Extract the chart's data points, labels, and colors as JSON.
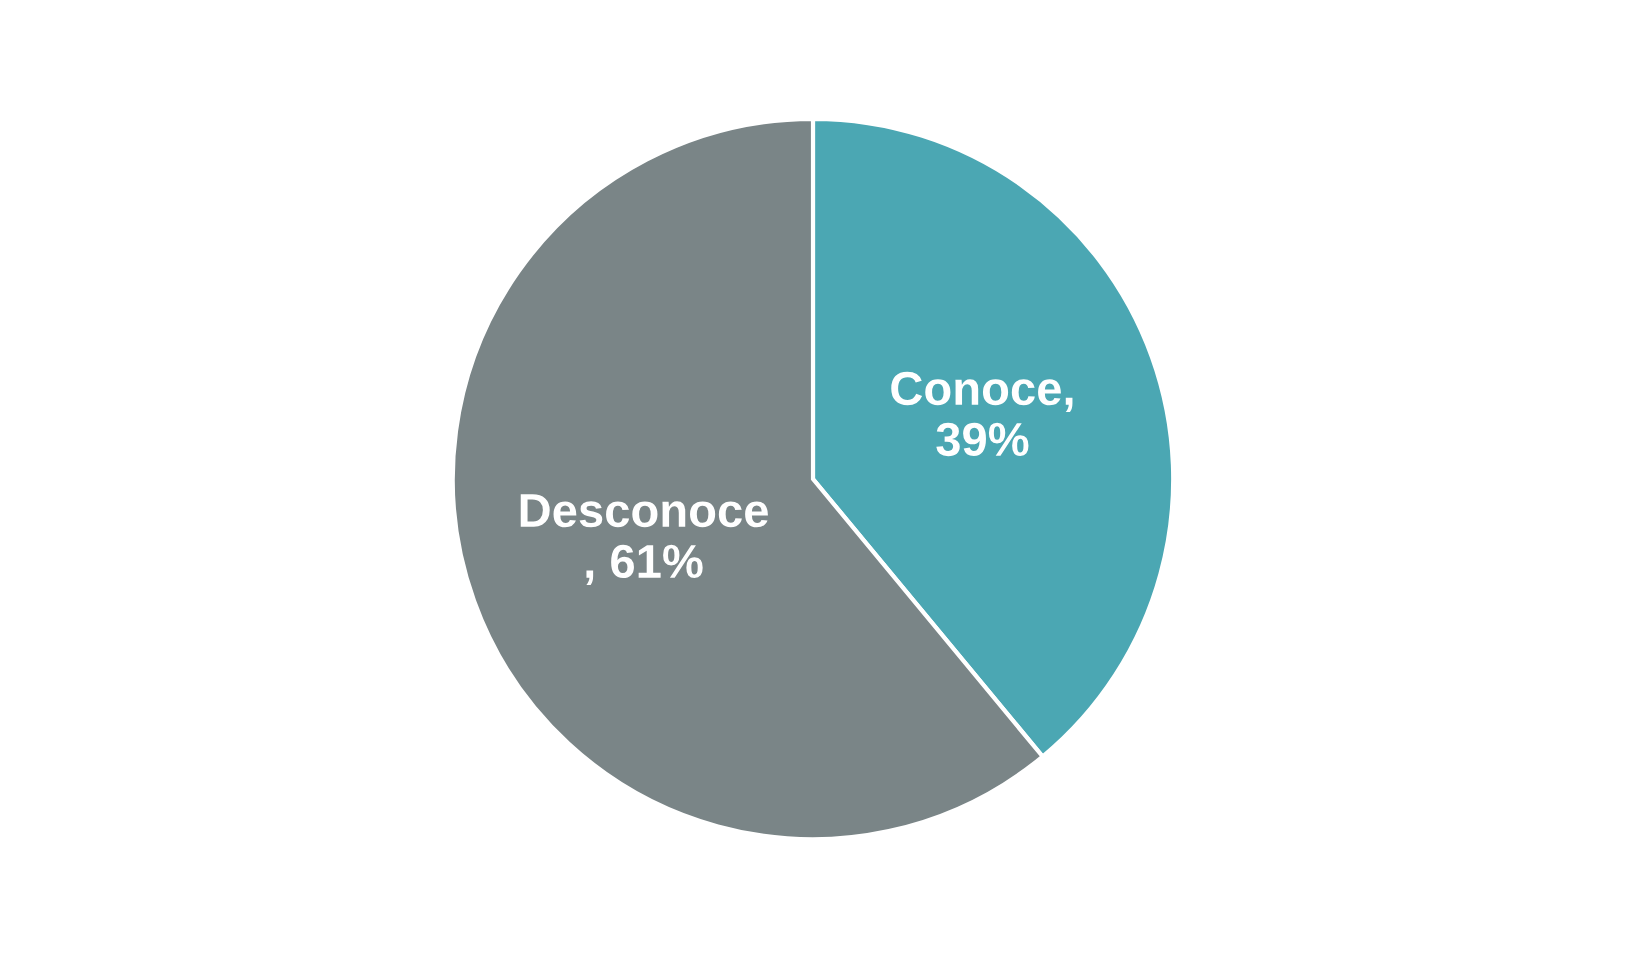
{
  "chart_data": {
    "type": "pie",
    "categories": [
      "Conoce",
      "Desconoce"
    ],
    "values": [
      39,
      61
    ],
    "colors": [
      "#4ba7b3",
      "#7a8587"
    ],
    "value_labels": [
      ",\n39%",
      "\n, 61%"
    ]
  }
}
